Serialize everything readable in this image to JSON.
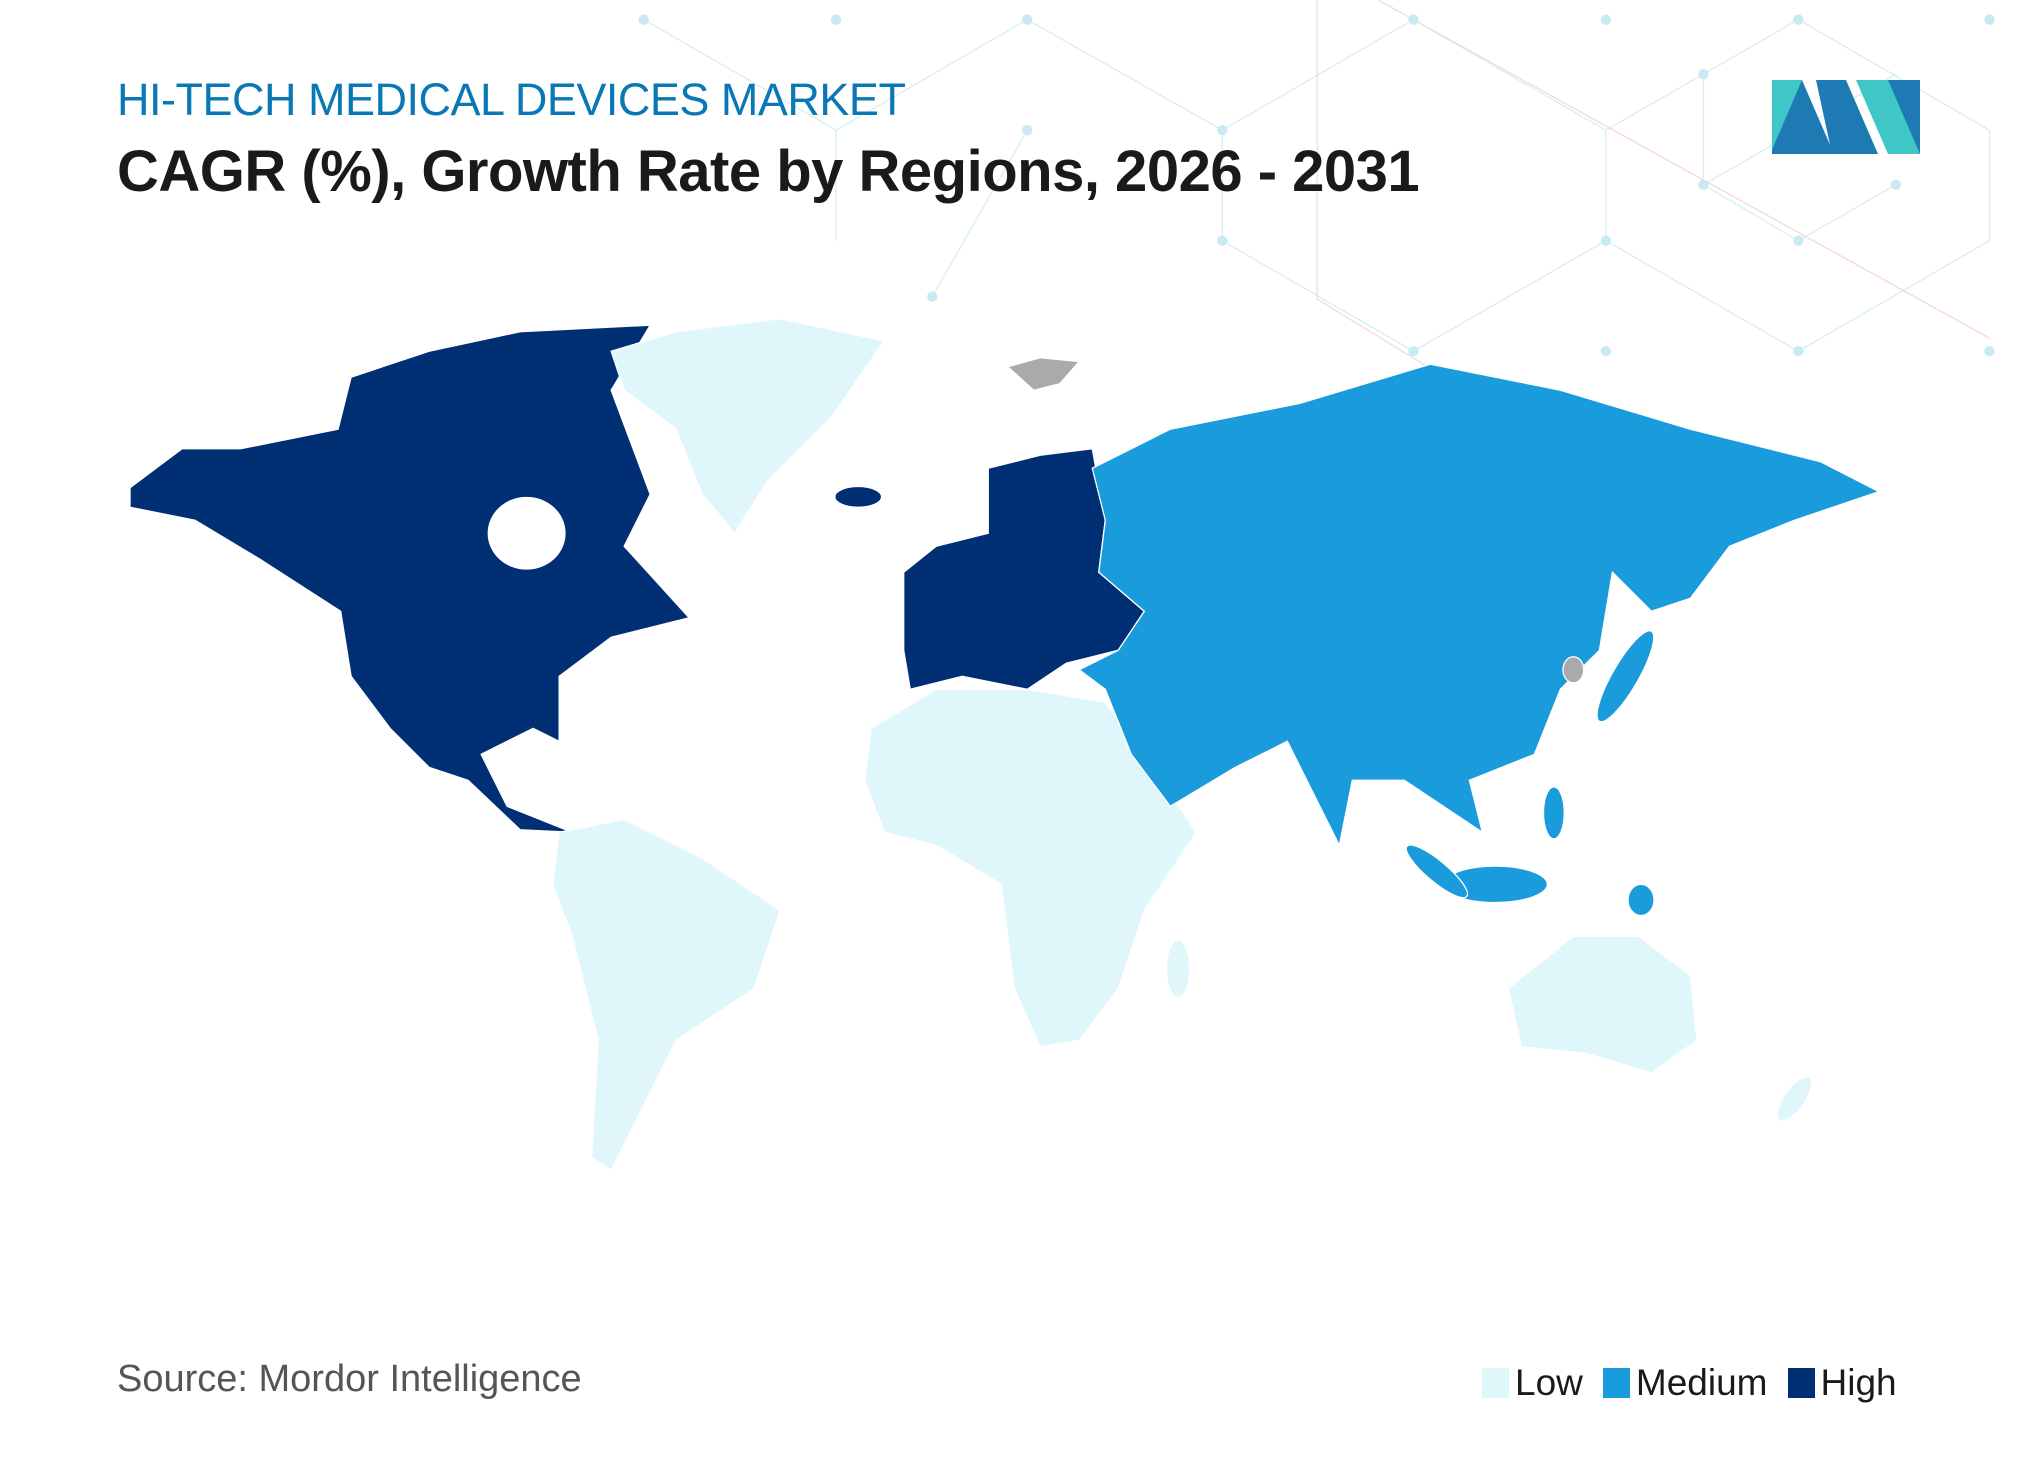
{
  "header": {
    "subtitle": "HI-TECH MEDICAL DEVICES MARKET",
    "title": "CAGR (%), Growth Rate by Regions, 2026 - 2031"
  },
  "footer": {
    "source": "Source: Mordor Intelligence"
  },
  "chart_data": {
    "type": "choropleth map",
    "title": "CAGR (%), Growth Rate by Regions, 2026 - 2031",
    "legend": {
      "placement": "bottom-right",
      "entries": [
        {
          "label": "Low",
          "color": "#dff6fb"
        },
        {
          "label": "Medium",
          "color": "#1a9bdb"
        },
        {
          "label": "High",
          "color": "#002f73"
        }
      ]
    },
    "regions": [
      {
        "region": "North America",
        "level": "High"
      },
      {
        "region": "Europe",
        "level": "High"
      },
      {
        "region": "Asia-Pacific",
        "level": "Medium"
      },
      {
        "region": "Middle East",
        "level": "Medium"
      },
      {
        "region": "South America",
        "level": "Low"
      },
      {
        "region": "Africa",
        "level": "Low"
      },
      {
        "region": "Australia and New Zealand",
        "level": "Low"
      },
      {
        "region": "Greenland",
        "level": "Low"
      }
    ],
    "no_data_color": "#aaaaaa"
  },
  "logo": {
    "icon": "mordor-intelligence-logo"
  }
}
